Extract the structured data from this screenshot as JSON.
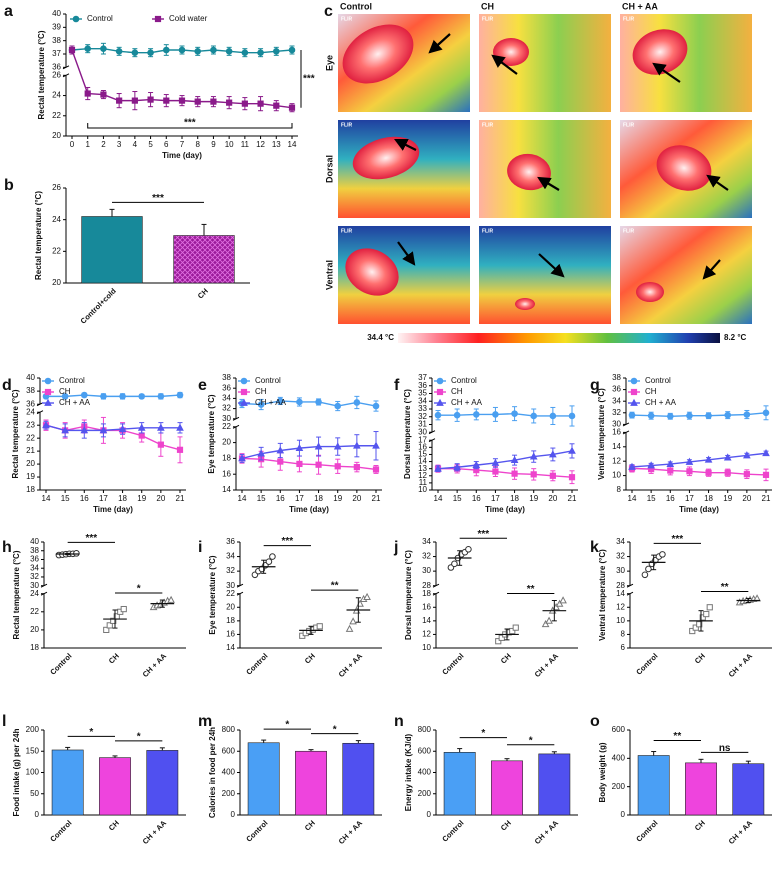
{
  "chart_data": [
    {
      "type": "line",
      "panel_label": "a",
      "ylabel": "Rectal temperature (°C)",
      "xlabel": "Time (day)",
      "x": [
        0,
        1,
        2,
        3,
        4,
        5,
        6,
        7,
        8,
        9,
        10,
        11,
        12,
        13,
        14
      ],
      "xlim": [
        0,
        14
      ],
      "xticks": [
        0,
        1,
        2,
        3,
        4,
        5,
        6,
        7,
        8,
        9,
        10,
        11,
        12,
        13,
        14
      ],
      "ylim": [
        20,
        40
      ],
      "y_break": [
        26,
        36
      ],
      "yticks": [
        20,
        22,
        24,
        26,
        36,
        37,
        38,
        39,
        40
      ],
      "legend": "top",
      "series": [
        {
          "name": "Control",
          "color": "#17899a",
          "marker": "circle",
          "values": [
            37.3,
            37.4,
            37.4,
            37.2,
            37.1,
            37.1,
            37.3,
            37.3,
            37.2,
            37.3,
            37.2,
            37.1,
            37.1,
            37.2,
            37.3
          ],
          "errors": [
            0.3,
            0.3,
            0.4,
            0.3,
            0.3,
            0.3,
            0.4,
            0.3,
            0.3,
            0.3,
            0.3,
            0.3,
            0.3,
            0.3,
            0.3
          ]
        },
        {
          "name": "Cold water",
          "color": "#8a1a8a",
          "marker": "square",
          "values": [
            37.3,
            24.2,
            24.1,
            23.5,
            23.5,
            23.6,
            23.5,
            23.5,
            23.4,
            23.4,
            23.3,
            23.2,
            23.2,
            23.0,
            22.8
          ],
          "errors": [
            0.3,
            0.6,
            0.4,
            0.7,
            0.9,
            0.7,
            0.6,
            0.5,
            0.5,
            0.5,
            0.6,
            0.6,
            0.7,
            0.5,
            0.4
          ]
        }
      ],
      "annotations": [
        "***",
        "***"
      ]
    },
    {
      "type": "bar",
      "panel_label": "b",
      "ylabel": "Rectal temperature (°C)",
      "categories": [
        "Control+cold",
        "CH"
      ],
      "values": [
        24.2,
        23.0
      ],
      "errors": [
        0.45,
        0.7
      ],
      "colors": [
        "#17899a",
        "#b020b0"
      ],
      "hatch": [
        false,
        true
      ],
      "ylim": [
        20,
        26
      ],
      "yticks": [
        20,
        22,
        24,
        26
      ],
      "annotations": [
        "***"
      ]
    },
    {
      "type": "line",
      "panel_label": "d",
      "ylabel": "Rectal temperature (°C)",
      "xlabel": "Time (day)",
      "x": [
        14,
        15,
        16,
        17,
        18,
        19,
        20,
        21
      ],
      "xlim": [
        14,
        21
      ],
      "xticks": [
        14,
        15,
        16,
        17,
        18,
        19,
        20,
        21
      ],
      "ylim": [
        18,
        40
      ],
      "y_break": [
        24,
        36
      ],
      "yticks": [
        18,
        19,
        20,
        21,
        22,
        23,
        24,
        36,
        38,
        40
      ],
      "legend": "upper left",
      "series": [
        {
          "name": "Control",
          "color": "#4a9ff0",
          "marker": "circle",
          "values": [
            37.2,
            37.2,
            37.4,
            37.2,
            37.2,
            37.2,
            37.2,
            37.4
          ],
          "errors": [
            0.3,
            0.3,
            0.3,
            0.4,
            0.4,
            0.3,
            0.4,
            0.4
          ]
        },
        {
          "name": "CH",
          "color": "#ee44cc",
          "marker": "square",
          "values": [
            23.0,
            22.6,
            22.9,
            22.6,
            22.6,
            22.2,
            21.5,
            21.1
          ],
          "errors": [
            0.4,
            0.6,
            0.5,
            1.0,
            0.6,
            0.5,
            0.9,
            1.0
          ]
        },
        {
          "name": "CH + AA",
          "color": "#5555ee",
          "marker": "triangle",
          "values": [
            23.0,
            22.6,
            22.6,
            22.6,
            22.7,
            22.8,
            22.8,
            22.8
          ],
          "errors": [
            0.3,
            0.5,
            0.6,
            0.5,
            0.4,
            0.4,
            0.4,
            0.4
          ]
        }
      ]
    },
    {
      "type": "line",
      "panel_label": "e",
      "ylabel": "Eye temperature (°C)",
      "xlabel": "Time (day)",
      "x": [
        14,
        15,
        16,
        17,
        18,
        19,
        20,
        21
      ],
      "xlim": [
        14,
        21
      ],
      "xticks": [
        14,
        15,
        16,
        17,
        18,
        19,
        20,
        21
      ],
      "ylim": [
        14,
        38
      ],
      "y_break": [
        22,
        30
      ],
      "yticks": [
        14,
        16,
        18,
        20,
        22,
        30,
        32,
        34,
        36,
        38
      ],
      "legend": "upper left",
      "series": [
        {
          "name": "Control",
          "color": "#4a9ff0",
          "marker": "circle",
          "values": [
            33.0,
            32.8,
            33.5,
            33.3,
            33.3,
            32.5,
            33.2,
            32.5
          ],
          "errors": [
            0.8,
            1.0,
            0.7,
            0.8,
            0.6,
            0.9,
            1.2,
            1.0
          ]
        },
        {
          "name": "CH",
          "color": "#ee44cc",
          "marker": "square",
          "values": [
            18.0,
            17.9,
            17.6,
            17.3,
            17.2,
            17.0,
            16.9,
            16.6
          ],
          "errors": [
            0.6,
            1.0,
            1.1,
            1.0,
            1.2,
            0.9,
            0.6,
            0.5
          ]
        },
        {
          "name": "CH + AA",
          "color": "#5555ee",
          "marker": "triangle",
          "values": [
            18.0,
            18.6,
            19.0,
            19.3,
            19.5,
            19.5,
            19.6,
            19.6
          ],
          "errors": [
            0.5,
            0.8,
            0.9,
            1.0,
            1.2,
            1.1,
            1.4,
            1.8
          ]
        }
      ]
    },
    {
      "type": "line",
      "panel_label": "f",
      "ylabel": "Dorsal temperature (°C)",
      "xlabel": "Time (day)",
      "x": [
        14,
        15,
        16,
        17,
        18,
        19,
        20,
        21
      ],
      "xlim": [
        14,
        21
      ],
      "xticks": [
        14,
        15,
        16,
        17,
        18,
        19,
        20,
        21
      ],
      "ylim": [
        10,
        37
      ],
      "y_break": [
        17,
        30
      ],
      "yticks": [
        10,
        11,
        12,
        13,
        14,
        15,
        16,
        17,
        30,
        31,
        32,
        33,
        34,
        35,
        36,
        37
      ],
      "legend": "upper left",
      "series": [
        {
          "name": "Control",
          "color": "#4a9ff0",
          "marker": "circle",
          "values": [
            32.2,
            32.2,
            32.3,
            32.3,
            32.4,
            32.1,
            32.1,
            32.1
          ],
          "errors": [
            0.6,
            0.8,
            0.7,
            0.9,
            0.9,
            0.9,
            1.1,
            1.3
          ]
        },
        {
          "name": "CH",
          "color": "#ee44cc",
          "marker": "square",
          "values": [
            13.0,
            13.0,
            12.8,
            12.6,
            12.3,
            12.2,
            12.0,
            11.8
          ],
          "errors": [
            0.5,
            0.6,
            0.8,
            0.7,
            0.8,
            0.8,
            0.7,
            0.9
          ]
        },
        {
          "name": "CH + AA",
          "color": "#5555ee",
          "marker": "triangle",
          "values": [
            13.0,
            13.2,
            13.5,
            13.8,
            14.2,
            14.7,
            15.0,
            15.5
          ],
          "errors": [
            0.4,
            0.5,
            0.5,
            0.6,
            0.7,
            0.8,
            0.9,
            1.0
          ]
        }
      ]
    },
    {
      "type": "line",
      "panel_label": "g",
      "ylabel": "Ventral temperature (°C)",
      "xlabel": "Time (day)",
      "x": [
        14,
        15,
        16,
        17,
        18,
        19,
        20,
        21
      ],
      "xlim": [
        14,
        21
      ],
      "xticks": [
        14,
        15,
        16,
        17,
        18,
        19,
        20,
        21
      ],
      "ylim": [
        8,
        38
      ],
      "y_break": [
        16,
        30
      ],
      "yticks": [
        8,
        10,
        12,
        14,
        16,
        30,
        32,
        34,
        36,
        38
      ],
      "legend": "upper left",
      "series": [
        {
          "name": "Control",
          "color": "#4a9ff0",
          "marker": "circle",
          "values": [
            31.6,
            31.5,
            31.4,
            31.5,
            31.5,
            31.6,
            31.7,
            32.0
          ],
          "errors": [
            0.5,
            0.6,
            0.5,
            0.6,
            0.5,
            0.6,
            0.7,
            1.2
          ]
        },
        {
          "name": "CH",
          "color": "#ee44cc",
          "marker": "square",
          "values": [
            11.0,
            10.9,
            10.7,
            10.6,
            10.4,
            10.4,
            10.2,
            10.1
          ],
          "errors": [
            0.5,
            0.6,
            0.6,
            0.6,
            0.5,
            0.5,
            0.6,
            0.8
          ]
        },
        {
          "name": "CH + AA",
          "color": "#5555ee",
          "marker": "triangle",
          "values": [
            11.2,
            11.4,
            11.6,
            11.9,
            12.2,
            12.5,
            12.8,
            13.1
          ],
          "errors": [
            0.3,
            0.3,
            0.3,
            0.3,
            0.3,
            0.3,
            0.3,
            0.3
          ]
        }
      ]
    },
    {
      "type": "dotplot",
      "panel_label": "h",
      "ylabel": "Rectal temperature (°C)",
      "categories": [
        "Control",
        "CH",
        "CH + AA"
      ],
      "points": [
        [
          37.0,
          37.1,
          37.2,
          37.3,
          37.3,
          37.4
        ],
        [
          20.0,
          20.5,
          21.0,
          21.5,
          22.0,
          22.3
        ],
        [
          22.5,
          22.7,
          22.8,
          23.0,
          23.2,
          23.3
        ]
      ],
      "means": [
        37.25,
        21.2,
        22.9
      ],
      "errors": [
        0.15,
        1.0,
        0.4
      ],
      "markers": [
        "circle",
        "square",
        "triangle"
      ],
      "colors": [
        "#333333",
        "#777777",
        "#777777"
      ],
      "ylim": [
        18,
        40
      ],
      "y_break": [
        24,
        30
      ],
      "yticks": [
        18,
        20,
        22,
        24,
        30,
        32,
        34,
        36,
        38,
        40
      ],
      "annotations": [
        "***",
        "*"
      ]
    },
    {
      "type": "dotplot",
      "panel_label": "i",
      "ylabel": "Eye temperature (°C)",
      "categories": [
        "Control",
        "CH",
        "CH + AA"
      ],
      "points": [
        [
          31.5,
          32.0,
          32.3,
          32.8,
          33.3,
          34.0
        ],
        [
          15.8,
          16.2,
          16.5,
          16.7,
          17.0,
          17.2
        ],
        [
          16.8,
          17.9,
          19.5,
          20.5,
          21.2,
          21.5
        ]
      ],
      "means": [
        32.6,
        16.6,
        19.6
      ],
      "errors": [
        0.9,
        0.6,
        1.8
      ],
      "markers": [
        "circle",
        "square",
        "triangle"
      ],
      "colors": [
        "#333333",
        "#777777",
        "#777777"
      ],
      "ylim": [
        14,
        36
      ],
      "y_break": [
        22,
        30
      ],
      "yticks": [
        14,
        16,
        18,
        20,
        22,
        30,
        32,
        34,
        36
      ],
      "annotations": [
        "***",
        "**"
      ]
    },
    {
      "type": "dotplot",
      "panel_label": "j",
      "ylabel": "Dorsal temperature (°C)",
      "categories": [
        "Control",
        "CH",
        "CH + AA"
      ],
      "points": [
        [
          30.5,
          31.0,
          31.8,
          32.3,
          32.6,
          33.0
        ],
        [
          11.0,
          11.5,
          12.0,
          12.3,
          12.5,
          13.0
        ],
        [
          13.5,
          14.0,
          15.5,
          16.0,
          16.5,
          17.0
        ]
      ],
      "means": [
        31.8,
        12.0,
        15.5
      ],
      "errors": [
        1.0,
        0.8,
        1.5
      ],
      "markers": [
        "circle",
        "square",
        "triangle"
      ],
      "colors": [
        "#333333",
        "#777777",
        "#777777"
      ],
      "ylim": [
        10,
        34
      ],
      "y_break": [
        18,
        28
      ],
      "yticks": [
        10,
        12,
        14,
        16,
        18,
        28,
        30,
        32,
        34
      ],
      "annotations": [
        "***",
        "**"
      ]
    },
    {
      "type": "dotplot",
      "panel_label": "k",
      "ylabel": "Ventral temperature (°C)",
      "categories": [
        "Control",
        "CH",
        "CH + AA"
      ],
      "points": [
        [
          29.5,
          30.3,
          31.0,
          31.5,
          32.0,
          32.3
        ],
        [
          8.5,
          9.0,
          9.5,
          10.5,
          11.0,
          12.0
        ],
        [
          12.7,
          12.9,
          13.0,
          13.1,
          13.2,
          13.3
        ]
      ],
      "means": [
        31.2,
        10.0,
        13.0
      ],
      "errors": [
        1.0,
        1.5,
        0.3
      ],
      "markers": [
        "circle",
        "square",
        "triangle"
      ],
      "colors": [
        "#333333",
        "#777777",
        "#777777"
      ],
      "ylim": [
        6,
        34
      ],
      "y_break": [
        14,
        28
      ],
      "yticks": [
        6,
        8,
        10,
        12,
        14,
        28,
        30,
        32,
        34
      ],
      "annotations": [
        "***",
        "**"
      ]
    },
    {
      "type": "bar",
      "panel_label": "l",
      "ylabel": "Food intake (g) per 24h",
      "categories": [
        "Control",
        "CH",
        "CH + AA"
      ],
      "values": [
        153,
        135,
        152
      ],
      "errors": [
        6,
        4,
        6
      ],
      "colors": [
        "#4a9ff5",
        "#ee44dd",
        "#5050f0"
      ],
      "hatch": [
        false,
        false,
        false
      ],
      "ylim": [
        0,
        200
      ],
      "yticks": [
        0,
        50,
        100,
        150,
        200
      ],
      "annotations": [
        "*",
        "*"
      ]
    },
    {
      "type": "bar",
      "panel_label": "m",
      "ylabel": "Calories in food per 24h",
      "categories": [
        "Control",
        "CH",
        "CH + AA"
      ],
      "values": [
        680,
        600,
        675
      ],
      "errors": [
        25,
        15,
        25
      ],
      "colors": [
        "#4a9ff5",
        "#ee44dd",
        "#5050f0"
      ],
      "hatch": [
        false,
        false,
        false
      ],
      "ylim": [
        0,
        800
      ],
      "yticks": [
        0,
        200,
        400,
        600,
        800
      ],
      "annotations": [
        "*",
        "*"
      ]
    },
    {
      "type": "bar",
      "panel_label": "n",
      "ylabel": "Energy intake (KJ/d)",
      "categories": [
        "Control",
        "CH",
        "CH + AA"
      ],
      "values": [
        590,
        510,
        575
      ],
      "errors": [
        35,
        20,
        20
      ],
      "colors": [
        "#4a9ff5",
        "#ee44dd",
        "#5050f0"
      ],
      "hatch": [
        false,
        false,
        false
      ],
      "ylim": [
        0,
        800
      ],
      "yticks": [
        0,
        200,
        400,
        600,
        800
      ],
      "annotations": [
        "*",
        "*"
      ]
    },
    {
      "type": "bar",
      "panel_label": "o",
      "ylabel": "Body weight (g)",
      "categories": [
        "Control",
        "CH",
        "CH + AA"
      ],
      "values": [
        420,
        368,
        362
      ],
      "errors": [
        28,
        25,
        18
      ],
      "colors": [
        "#4a9ff5",
        "#ee44dd",
        "#5050f0"
      ],
      "hatch": [
        false,
        false,
        false
      ],
      "ylim": [
        0,
        600
      ],
      "yticks": [
        0,
        200,
        400,
        600
      ],
      "annotations": [
        "**",
        "ns"
      ]
    }
  ],
  "thermal_images": {
    "panel_label": "c",
    "columns": [
      "Control",
      "CH",
      "CH + AA"
    ],
    "rows": [
      "Eye",
      "Dorsal",
      "Ventral"
    ],
    "watermark": "FLIR",
    "scale_max_label": "34.4 °C",
    "scale_min_label": "8.2 °C"
  }
}
